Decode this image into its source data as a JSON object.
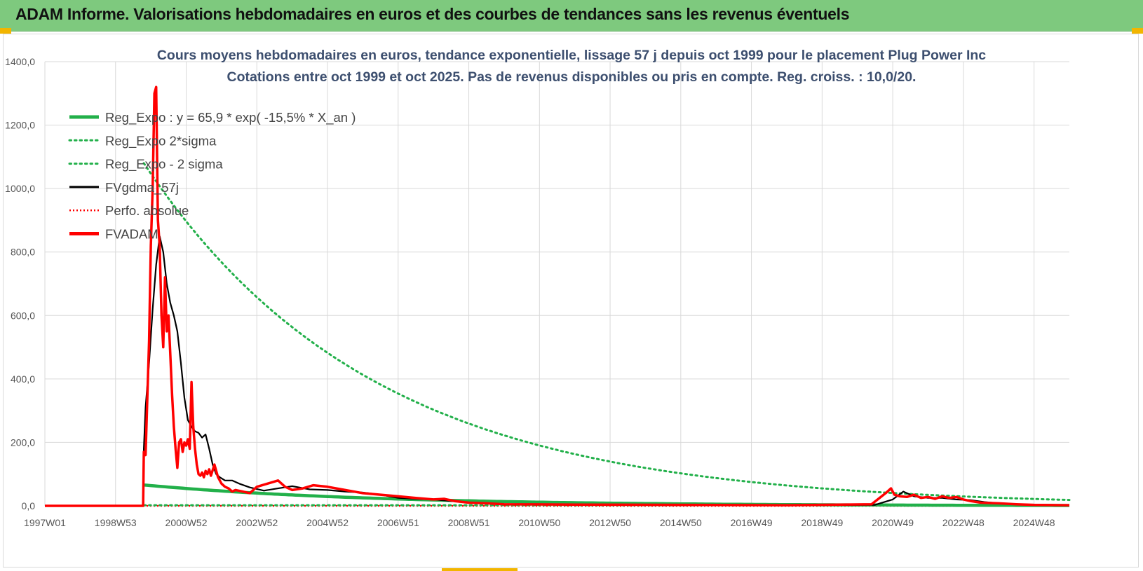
{
  "header": {
    "title": "ADAM Informe. Valorisations hebdomadaires en euros et des courbes de tendances sans les revenus éventuels"
  },
  "colors": {
    "header_bg": "#7ec97e",
    "green": "#22b04a",
    "black": "#000000",
    "red": "#ff0000",
    "grid": "#d9d9d9",
    "accent": "#f2b500"
  },
  "chart_data": {
    "type": "line",
    "title": "Cours moyens hebdomadaires en euros, tendance exponentielle, lissage 57 j depuis oct 1999 pour le placement Plug Power Inc",
    "subtitle": "Cotations entre oct 1999 et oct 2025.  Pas de revenus disponibles ou pris en compte. Reg. croiss. : 10,0/20.",
    "xlabel": "",
    "ylabel": "",
    "xlim": [
      1997.0,
      2026.0
    ],
    "ylim": [
      0,
      1400
    ],
    "y_ticks": [
      "0,0",
      "200,0",
      "400,0",
      "600,0",
      "800,0",
      "1000,0",
      "1200,0",
      "1400,0"
    ],
    "x_ticks": [
      {
        "label": "1997W01",
        "x": 1997.0
      },
      {
        "label": "1998W53",
        "x": 1999.0
      },
      {
        "label": "2000W52",
        "x": 2001.0
      },
      {
        "label": "2002W52",
        "x": 2003.0
      },
      {
        "label": "2004W52",
        "x": 2005.0
      },
      {
        "label": "2006W51",
        "x": 2007.0
      },
      {
        "label": "2008W51",
        "x": 2009.0
      },
      {
        "label": "2010W50",
        "x": 2011.0
      },
      {
        "label": "2012W50",
        "x": 2013.0
      },
      {
        "label": "2014W50",
        "x": 2015.0
      },
      {
        "label": "2016W49",
        "x": 2017.0
      },
      {
        "label": "2018W49",
        "x": 2019.0
      },
      {
        "label": "2020W49",
        "x": 2021.0
      },
      {
        "label": "2022W48",
        "x": 2023.0
      },
      {
        "label": "2024W48",
        "x": 2025.0
      }
    ],
    "legend": [
      {
        "label": "Reg_Expo : y = 65,9 * exp( -15,5% *  X_an )",
        "style": "solid-green"
      },
      {
        "label": "Reg_Expo 2*sigma",
        "style": "dotted-green"
      },
      {
        "label": "Reg_Expo - 2 sigma",
        "style": "dotted-green"
      },
      {
        "label": "FVgdma_57j",
        "style": "solid-black"
      },
      {
        "label": "Perfo. absolue",
        "style": "dotted-red"
      },
      {
        "label": "FVADAM",
        "style": "solid-red"
      }
    ],
    "series": [
      {
        "name": "Reg_Expo",
        "start": 1999.8,
        "end": 2026.0,
        "a": 65.9,
        "rate": -0.155
      },
      {
        "name": "Reg_Expo 2*sigma",
        "start": 1999.8,
        "end": 2026.0,
        "a": 1080,
        "rate": -0.155
      },
      {
        "name": "Reg_Expo - 2 sigma",
        "start": 1999.8,
        "end": 2026.0,
        "value": 2
      },
      {
        "name": "FVgdma_57j",
        "x": [
          1997.0,
          1999.78,
          1999.8,
          1999.85,
          1999.95,
          2000.05,
          2000.15,
          2000.25,
          2000.35,
          2000.45,
          2000.55,
          2000.65,
          2000.75,
          2000.85,
          2000.95,
          2001.05,
          2001.15,
          2001.25,
          2001.35,
          2001.45,
          2001.55,
          2001.65,
          2001.75,
          2001.85,
          2001.95,
          2002.1,
          2002.3,
          2002.5,
          2002.8,
          2003.2,
          2003.6,
          2004.0,
          2004.5,
          2005.0,
          2005.5,
          2006.0,
          2006.5,
          2007.0,
          2007.5,
          2008.0,
          2008.5,
          2009.0,
          2010.0,
          2012.0,
          2015.0,
          2018.0,
          2020.5,
          2021.0,
          2021.3,
          2021.6,
          2022.0,
          2022.4,
          2022.8,
          2023.2,
          2023.6,
          2024.0,
          2024.5,
          2025.0,
          2026.0
        ],
        "values": [
          0,
          0,
          180,
          310,
          450,
          620,
          760,
          850,
          800,
          700,
          640,
          600,
          550,
          450,
          340,
          270,
          250,
          235,
          230,
          215,
          225,
          180,
          130,
          100,
          90,
          80,
          80,
          70,
          58,
          48,
          55,
          62,
          52,
          50,
          45,
          42,
          35,
          25,
          22,
          20,
          15,
          10,
          5,
          3,
          2,
          2,
          3,
          20,
          45,
          30,
          25,
          25,
          20,
          18,
          12,
          8,
          5,
          3,
          2
        ]
      },
      {
        "name": "Perfo. absolue",
        "x": [
          1997.0,
          2026.0
        ],
        "values": [
          0,
          0
        ]
      },
      {
        "name": "FVADAM",
        "x": [
          1997.0,
          1999.78,
          1999.8,
          1999.85,
          1999.9,
          1999.95,
          2000.0,
          2000.05,
          2000.1,
          2000.15,
          2000.2,
          2000.25,
          2000.3,
          2000.35,
          2000.4,
          2000.45,
          2000.5,
          2000.55,
          2000.6,
          2000.65,
          2000.7,
          2000.75,
          2000.8,
          2000.85,
          2000.9,
          2000.95,
          2001.0,
          2001.05,
          2001.1,
          2001.15,
          2001.2,
          2001.25,
          2001.3,
          2001.35,
          2001.4,
          2001.45,
          2001.5,
          2001.55,
          2001.6,
          2001.65,
          2001.7,
          2001.8,
          2001.9,
          2002.0,
          2002.1,
          2002.2,
          2002.3,
          2002.4,
          2002.6,
          2002.8,
          2003.0,
          2003.3,
          2003.6,
          2003.8,
          2004.0,
          2004.3,
          2004.6,
          2005.0,
          2005.5,
          2006.0,
          2006.5,
          2007.0,
          2007.5,
          2008.0,
          2008.3,
          2008.6,
          2009.0,
          2009.5,
          2010.0,
          2012.0,
          2015.0,
          2018.0,
          2020.4,
          2020.8,
          2020.95,
          2021.05,
          2021.2,
          2021.4,
          2021.6,
          2021.8,
          2022.0,
          2022.2,
          2022.4,
          2022.6,
          2022.8,
          2023.0,
          2023.2,
          2023.5,
          2024.0,
          2024.5,
          2025.0,
          2026.0
        ],
        "values": [
          0,
          0,
          170,
          160,
          340,
          520,
          820,
          1000,
          1300,
          1320,
          900,
          820,
          600,
          500,
          720,
          550,
          600,
          480,
          350,
          250,
          180,
          120,
          200,
          210,
          170,
          200,
          190,
          210,
          180,
          390,
          250,
          180,
          130,
          100,
          95,
          105,
          90,
          110,
          100,
          115,
          95,
          130,
          90,
          70,
          60,
          55,
          45,
          50,
          45,
          40,
          60,
          70,
          80,
          60,
          50,
          55,
          65,
          60,
          50,
          40,
          35,
          30,
          25,
          20,
          22,
          15,
          10,
          8,
          5,
          4,
          3,
          2,
          5,
          40,
          55,
          35,
          30,
          28,
          35,
          25,
          28,
          22,
          30,
          25,
          28,
          20,
          15,
          10,
          8,
          5,
          3,
          2
        ]
      }
    ]
  }
}
